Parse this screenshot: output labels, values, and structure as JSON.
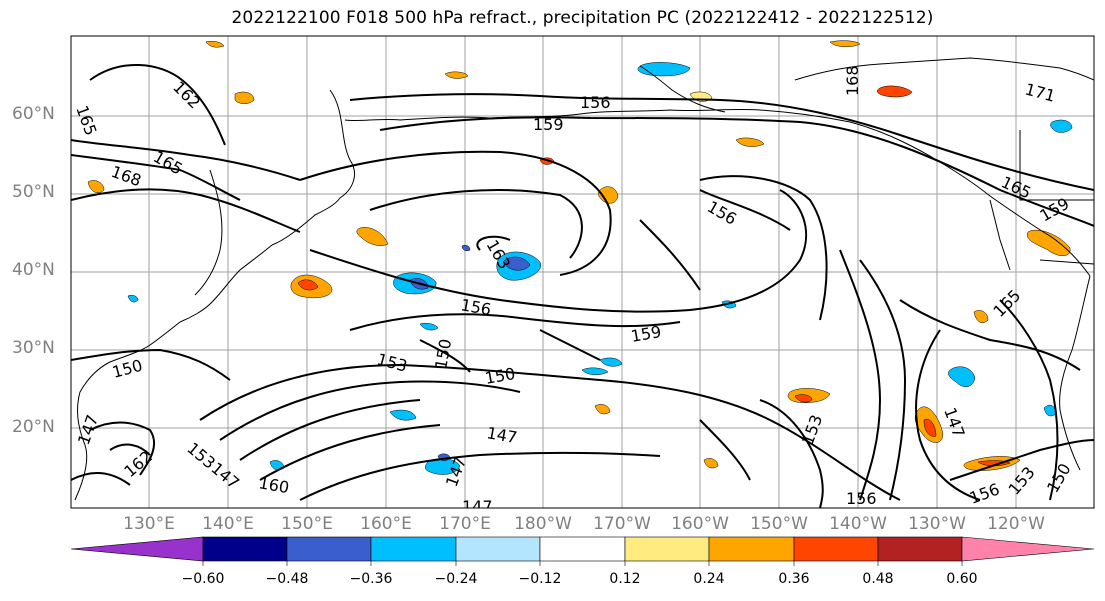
{
  "title": "2022122100 F018 500 hPa refract., precipitation PC (2022122412 - 2022122512)",
  "map": {
    "lat_labels": [
      "60°N",
      "50°N",
      "40°N",
      "30°N",
      "20°N"
    ],
    "lon_labels": [
      "130°E",
      "140°E",
      "150°E",
      "160°E",
      "170°E",
      "180°W",
      "170°W",
      "160°W",
      "150°W",
      "140°W",
      "130°W",
      "120°W"
    ],
    "contour_labels": [
      "162",
      "165",
      "168",
      "165",
      "156",
      "159",
      "168",
      "171",
      "165",
      "159",
      "156",
      "163",
      "156",
      "159",
      "153",
      "150",
      "150",
      "150",
      "147",
      "147",
      "153",
      "162",
      "147",
      "153",
      "147",
      "147",
      "156",
      "156",
      "153",
      "150",
      "147",
      "165",
      "160"
    ],
    "colors": {
      "contour": "#000000",
      "grid": "#a0a0a0",
      "coast": "#000000",
      "shading_positive": [
        "#ffeb80",
        "#ffa500",
        "#ff4500"
      ],
      "shading_negative": [
        "#b3e5ff",
        "#00bfff",
        "#3a5fcd"
      ]
    }
  },
  "colorbar": {
    "ticks": [
      "−0.60",
      "−0.48",
      "−0.36",
      "−0.24",
      "−0.12",
      "0.12",
      "0.24",
      "0.36",
      "0.48",
      "0.60"
    ],
    "colors": [
      "#9932cc",
      "#00008b",
      "#3a5fcd",
      "#00bfff",
      "#b3e5ff",
      "#ffffff",
      "#ffeb80",
      "#ffa500",
      "#ff4500",
      "#b22222",
      "#ff82ab"
    ]
  }
}
